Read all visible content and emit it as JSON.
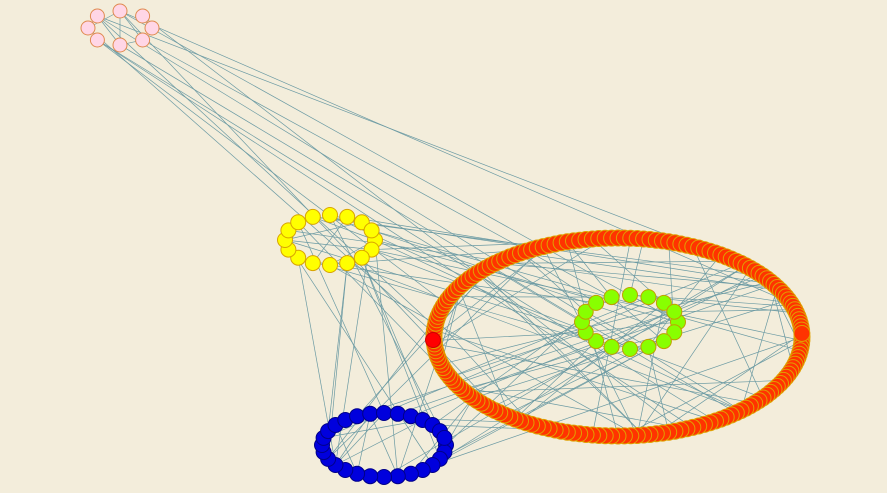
{
  "clusters": [
    {
      "color": "#ffd6e6"
    },
    {
      "color": "#ffff00"
    },
    {
      "color": "#ff3300"
    },
    {
      "color": "#88ff00"
    },
    {
      "color": "#0000dd"
    }
  ]
}
